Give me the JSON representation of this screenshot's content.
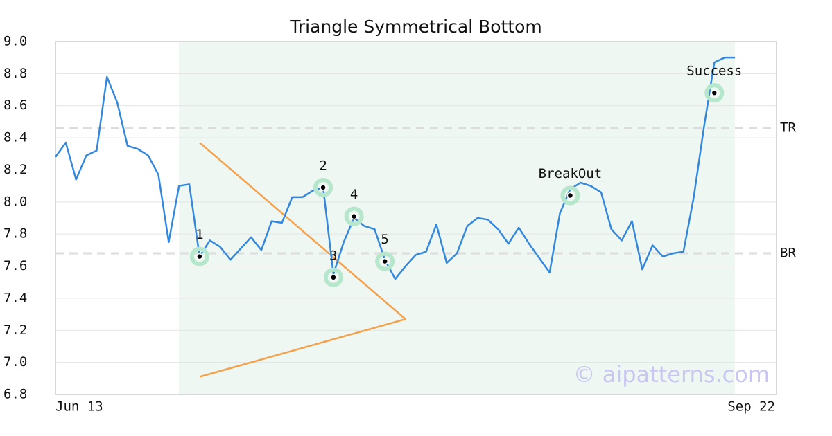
{
  "chart_data": {
    "type": "line",
    "title": "Triangle Symmetrical Bottom",
    "categories": [
      "Jun 13",
      null,
      null,
      null,
      null,
      null,
      null,
      null,
      null,
      null,
      null,
      null,
      null,
      null,
      null,
      null,
      null,
      null,
      null,
      null,
      null,
      null,
      null,
      null,
      null,
      null,
      null,
      null,
      null,
      null,
      null,
      null,
      null,
      null,
      null,
      null,
      null,
      null,
      null,
      null,
      null,
      null,
      null,
      null,
      null,
      null,
      null,
      null,
      null,
      null,
      null,
      null,
      null,
      null,
      null,
      null,
      null,
      null,
      null,
      null,
      null,
      null,
      null,
      null,
      null,
      null,
      "Sep 22"
    ],
    "series": [
      {
        "color": "#3388dd",
        "values": [
          8.28,
          8.37,
          8.14,
          8.29,
          8.32,
          8.78,
          8.62,
          8.35,
          8.33,
          8.29,
          8.17,
          7.75,
          8.1,
          8.11,
          7.66,
          7.76,
          7.72,
          7.64,
          7.71,
          7.78,
          7.7,
          7.88,
          7.87,
          8.03,
          8.03,
          8.07,
          8.09,
          7.55,
          7.75,
          7.9,
          7.85,
          7.83,
          7.64,
          7.52,
          7.6,
          7.67,
          7.69,
          7.86,
          7.62,
          7.68,
          7.85,
          7.9,
          7.89,
          7.83,
          7.74,
          7.84,
          7.74,
          7.65,
          7.56,
          7.93,
          8.08,
          8.12,
          8.1,
          8.06,
          7.83,
          7.76,
          7.88,
          7.58,
          7.73,
          7.66,
          7.68,
          7.69,
          8.03,
          8.47,
          8.87,
          8.9,
          8.9
        ]
      }
    ],
    "ylim": [
      6.8,
      9.0
    ],
    "yticks": [
      {
        "value": 6.8,
        "label": "6.8"
      },
      {
        "value": 7,
        "label": "7.0"
      },
      7.2,
      7.4,
      7.6,
      7.8,
      {
        "value": 8,
        "label": "8.0"
      },
      8.2,
      8.4,
      8.6,
      8.8,
      {
        "value": 9,
        "label": "9.0"
      }
    ],
    "grid": true,
    "highlight": [
      12,
      66
    ],
    "highlight_color": "#eef7f2",
    "levels": [
      {
        "name": "TR",
        "value": 8.46
      },
      {
        "name": "BR",
        "value": 7.68
      }
    ],
    "triangle": {
      "color": "#f5a04a",
      "lines": [
        {
          "x": [
            14,
            34
          ],
          "values": [
            8.37,
            7.27
          ]
        },
        {
          "x": [
            14,
            34
          ],
          "values": [
            6.91,
            7.27
          ]
        }
      ]
    },
    "points": [
      {
        "label": "1",
        "x": 14,
        "value": 7.66
      },
      {
        "label": "2",
        "x": 26,
        "value": 8.09
      },
      {
        "label": "3",
        "x": 27,
        "value": 7.53
      },
      {
        "label": "4",
        "x": 29,
        "value": 7.91
      },
      {
        "label": "5",
        "x": 32,
        "value": 7.63
      },
      {
        "label": "BreakOut",
        "x": 50,
        "value": 8.04
      },
      {
        "label": "Success",
        "x": 64,
        "value": 8.68
      }
    ],
    "watermark": "© aipatterns.com"
  }
}
